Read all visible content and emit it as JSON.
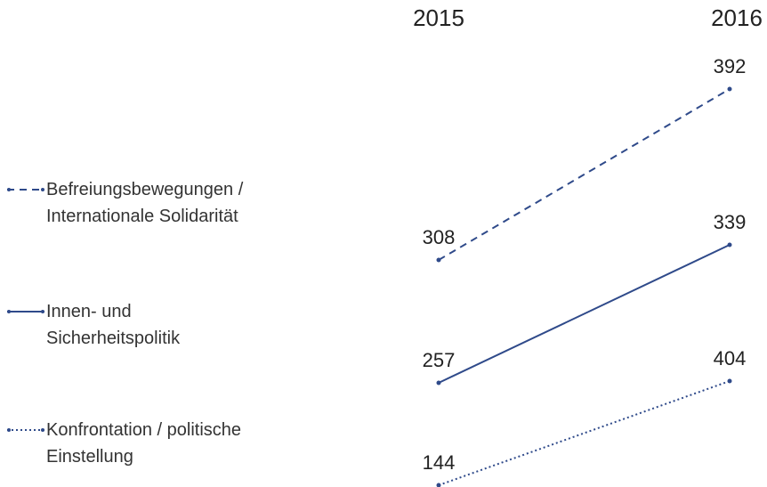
{
  "chart_data": {
    "type": "slope",
    "categories": [
      "2015",
      "2016"
    ],
    "series": [
      {
        "name": "Befreiungsbewegungen /\nInternationale Solidarität",
        "color": "#2f4a8a",
        "line_style": "dashed",
        "values": [
          308,
          392
        ]
      },
      {
        "name": "Innen- und\nSicherheitspolitik",
        "color": "#2f4a8a",
        "line_style": "solid",
        "values": [
          257,
          339
        ]
      },
      {
        "name": "Konfrontation / politische\nEinstellung",
        "color": "#2f4a8a",
        "line_style": "dotted",
        "values": [
          144,
          404
        ]
      }
    ],
    "legend": "left"
  }
}
